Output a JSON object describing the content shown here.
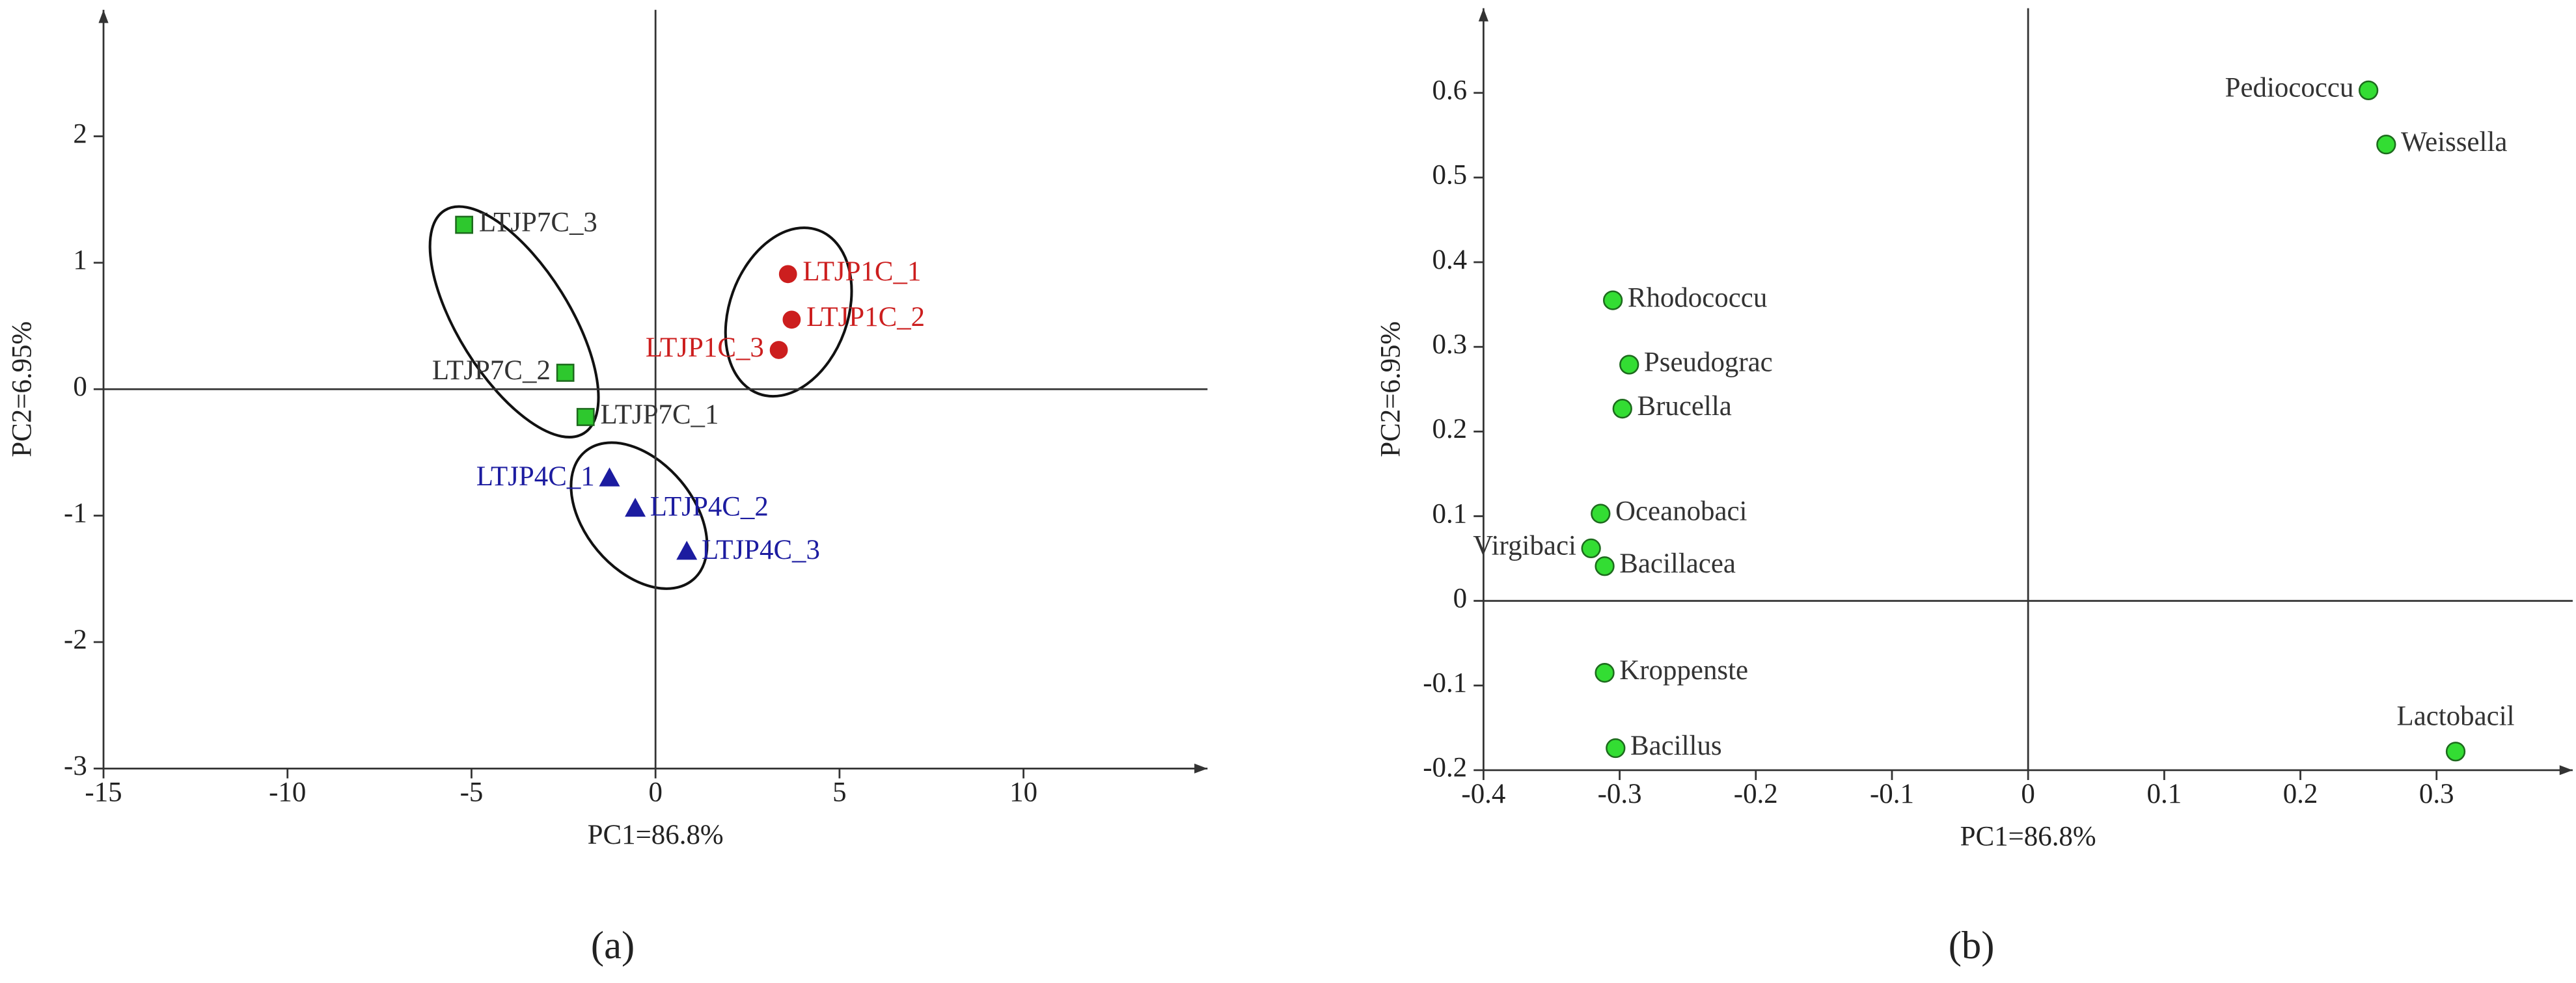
{
  "charts": [
    {
      "type": "scatter",
      "xlabel": "PC1=86.8%",
      "ylabel": "PC2=6.95%",
      "caption": "(a)",
      "xlim": [
        -15,
        15
      ],
      "ylim": [
        -3,
        3
      ],
      "xticks": [
        -15,
        -10,
        -5,
        0,
        5,
        10
      ],
      "yticks": [
        -3,
        -2,
        -1,
        0,
        1,
        2
      ],
      "series": [
        {
          "color": "#cc1e1e",
          "marker": "circle",
          "labels": [
            "LTJP1C_1",
            "LTJP1C_2",
            "LTJP1C_3"
          ],
          "x": [
            3.6,
            3.7,
            3.35
          ],
          "y": [
            0.91,
            0.55,
            0.31
          ]
        },
        {
          "color": "#1c1ca0",
          "marker": "triangle",
          "labels": [
            "LTJP4C_1",
            "LTJP4C_2",
            "LTJP4C_3"
          ],
          "x": [
            -1.25,
            -0.55,
            0.85
          ],
          "y": [
            -0.71,
            -0.95,
            -1.29
          ]
        },
        {
          "color": "#2ec82e",
          "marker": "square",
          "label_color": "#333333",
          "labels": [
            "LTJP7C_3",
            "LTJP7C_2",
            "LTJP7C_1"
          ],
          "x": [
            -5.2,
            -2.45,
            -1.9
          ],
          "y": [
            1.3,
            0.13,
            -0.22
          ]
        }
      ]
    },
    {
      "type": "scatter",
      "xlabel": "PC1=86.8%",
      "ylabel": "PC2=6.95%",
      "caption": "(b)",
      "xlim": [
        -0.4,
        0.4
      ],
      "ylim": [
        -0.2,
        0.7
      ],
      "xticks": [
        -0.4,
        -0.3,
        -0.2,
        -0.1,
        0,
        0.1,
        0.2,
        0.3
      ],
      "yticks": [
        -0.2,
        -0.1,
        0,
        0.1,
        0.2,
        0.3,
        0.4,
        0.5,
        0.6
      ],
      "series": [
        {
          "color": "#33dd33",
          "marker": "circle",
          "label_color": "#333333",
          "labels": [
            "Pediococcu",
            "Weissella",
            "Rhodococcu",
            "Pseudograc",
            "Brucella",
            "Oceanobaci",
            "Virgibaci",
            "Bacillacea",
            "Kroppenste",
            "Bacillus",
            "Lactobacil"
          ],
          "x": [
            0.25,
            0.263,
            -0.305,
            -0.293,
            -0.298,
            -0.314,
            -0.321,
            -0.311,
            -0.311,
            -0.303,
            0.314
          ],
          "y": [
            0.603,
            0.539,
            0.355,
            0.279,
            0.227,
            0.103,
            0.062,
            0.041,
            -0.085,
            -0.174,
            -0.178
          ]
        }
      ]
    }
  ]
}
